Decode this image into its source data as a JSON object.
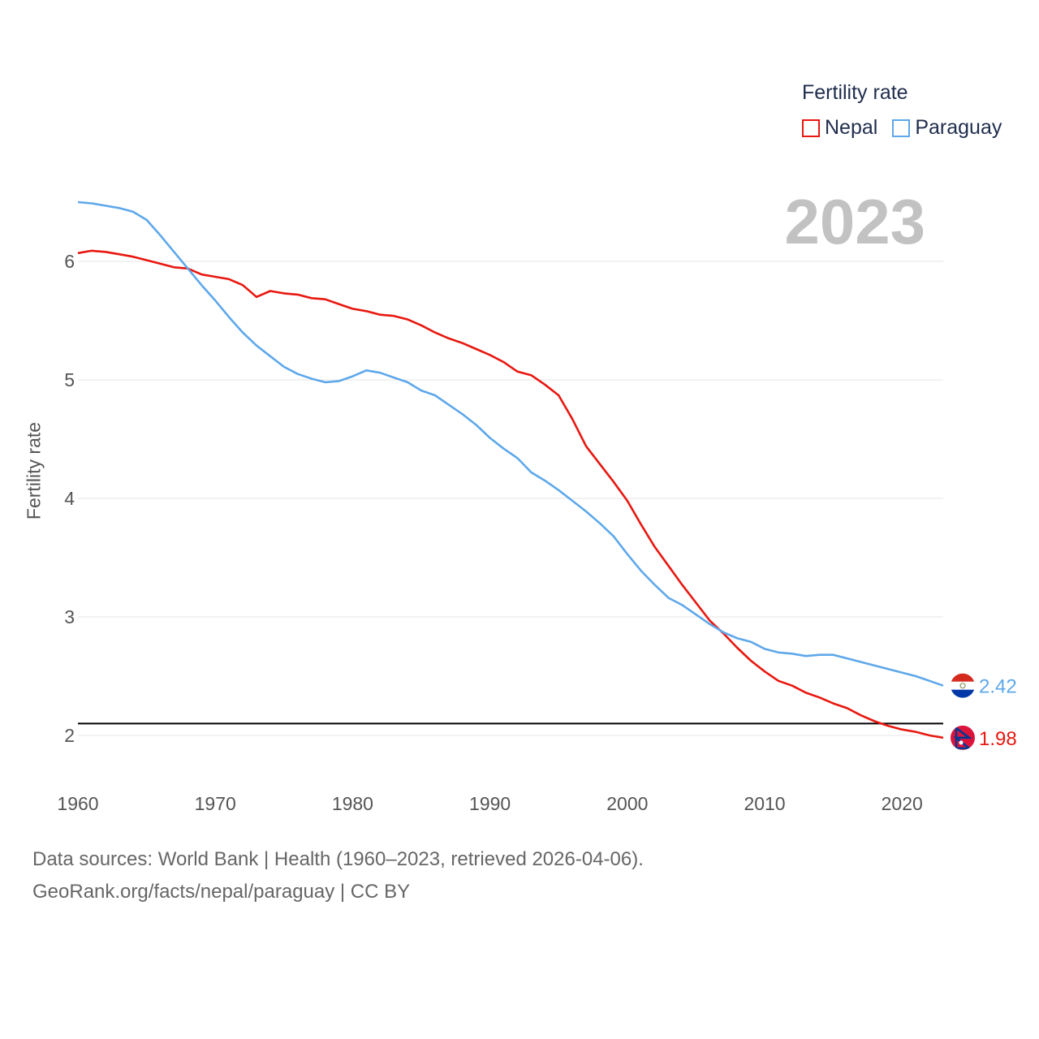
{
  "legend": {
    "title": "Fertility rate",
    "items": [
      {
        "name": "Nepal",
        "color": "#e8170f"
      },
      {
        "name": "Paraguay",
        "color": "#5ea8ea"
      }
    ]
  },
  "year_label": "2023",
  "footer": {
    "line1": "Data sources: World Bank | Health (1960–2023, retrieved 2026-04-06).",
    "line2": "GeoRank.org/facts/nepal/paraguay | CC BY"
  },
  "chart_data": {
    "type": "line",
    "title": "Fertility rate",
    "xlabel": "",
    "ylabel": "Fertility rate",
    "xlim": [
      1960,
      2023
    ],
    "ylim": [
      1.6,
      6.5
    ],
    "xticks": [
      1960,
      1970,
      1980,
      1990,
      2000,
      2010,
      2020
    ],
    "yticks": [
      2,
      3,
      4,
      5,
      6
    ],
    "reference_line": 2.1,
    "grid": true,
    "x": [
      1960,
      1961,
      1962,
      1963,
      1964,
      1965,
      1966,
      1967,
      1968,
      1969,
      1970,
      1971,
      1972,
      1973,
      1974,
      1975,
      1976,
      1977,
      1978,
      1979,
      1980,
      1981,
      1982,
      1983,
      1984,
      1985,
      1986,
      1987,
      1988,
      1989,
      1990,
      1991,
      1992,
      1993,
      1994,
      1995,
      1996,
      1997,
      1998,
      1999,
      2000,
      2001,
      2002,
      2003,
      2004,
      2005,
      2006,
      2007,
      2008,
      2009,
      2010,
      2011,
      2012,
      2013,
      2014,
      2015,
      2016,
      2017,
      2018,
      2019,
      2020,
      2021,
      2022,
      2023
    ],
    "series": [
      {
        "name": "Nepal",
        "color": "#e8170f",
        "end_label": "1.98",
        "values": [
          6.07,
          6.09,
          6.08,
          6.06,
          6.04,
          6.01,
          5.98,
          5.95,
          5.94,
          5.89,
          5.87,
          5.85,
          5.8,
          5.7,
          5.75,
          5.73,
          5.72,
          5.69,
          5.68,
          5.64,
          5.6,
          5.58,
          5.55,
          5.54,
          5.51,
          5.46,
          5.4,
          5.35,
          5.31,
          5.26,
          5.21,
          5.15,
          5.07,
          5.04,
          4.96,
          4.87,
          4.67,
          4.44,
          4.29,
          4.14,
          3.98,
          3.78,
          3.59,
          3.43,
          3.27,
          3.12,
          2.97,
          2.86,
          2.74,
          2.63,
          2.54,
          2.46,
          2.42,
          2.36,
          2.32,
          2.27,
          2.23,
          2.17,
          2.12,
          2.08,
          2.05,
          2.03,
          2.0,
          1.98
        ]
      },
      {
        "name": "Paraguay",
        "color": "#5ea8ea",
        "end_label": "2.42",
        "values": [
          6.5,
          6.49,
          6.47,
          6.45,
          6.42,
          6.35,
          6.22,
          6.08,
          5.94,
          5.8,
          5.67,
          5.53,
          5.4,
          5.29,
          5.2,
          5.11,
          5.05,
          5.01,
          4.98,
          4.99,
          5.03,
          5.08,
          5.06,
          5.02,
          4.98,
          4.91,
          4.87,
          4.79,
          4.71,
          4.62,
          4.51,
          4.42,
          4.34,
          4.22,
          4.15,
          4.07,
          3.98,
          3.89,
          3.79,
          3.68,
          3.53,
          3.39,
          3.27,
          3.16,
          3.1,
          3.02,
          2.94,
          2.87,
          2.82,
          2.79,
          2.73,
          2.7,
          2.69,
          2.67,
          2.68,
          2.68,
          2.65,
          2.62,
          2.59,
          2.56,
          2.53,
          2.5,
          2.46,
          2.42
        ]
      }
    ]
  }
}
